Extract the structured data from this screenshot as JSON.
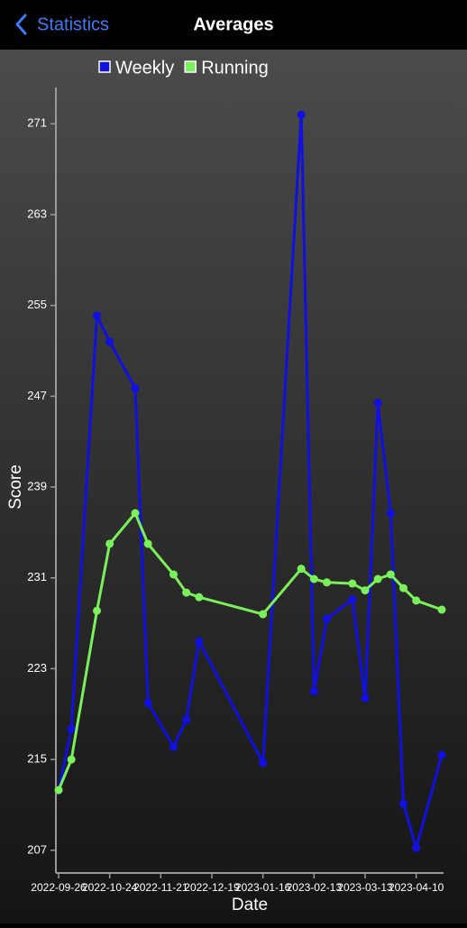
{
  "header": {
    "back": "Statistics",
    "title": "Averages"
  },
  "chart_data": {
    "type": "line",
    "x_label": "Date",
    "y_label": "Score",
    "x": [
      "2022-09-26",
      "2022-10-03",
      "2022-10-17",
      "2022-10-24",
      "2022-11-07",
      "2022-11-14",
      "2022-11-28",
      "2022-12-05",
      "2022-12-12",
      "2023-01-16",
      "2023-02-06",
      "2023-02-13",
      "2023-02-20",
      "2023-03-06",
      "2023-03-13",
      "2023-03-20",
      "2023-03-27",
      "2023-04-03",
      "2023-04-10",
      "2023-04-24"
    ],
    "series": [
      {
        "name": "Weekly",
        "color": "#1010e0",
        "values": [
          212.3,
          217.7,
          254.1,
          251.8,
          247.7,
          220.0,
          216.1,
          218.5,
          225.4,
          214.7,
          271.8,
          221.0,
          227.4,
          229.1,
          220.4,
          246.4,
          236.7,
          211.1,
          207.2,
          215.4
        ]
      },
      {
        "name": "Running",
        "color": "#7af05a",
        "values": [
          212.3,
          215.0,
          228.1,
          234.0,
          236.7,
          234.0,
          231.3,
          229.7,
          229.3,
          227.8,
          231.8,
          230.9,
          230.6,
          230.5,
          229.9,
          230.9,
          231.3,
          230.1,
          229.0,
          228.2
        ]
      }
    ],
    "xlim": [
      "2022-09-26",
      "2023-04-25"
    ],
    "xticks": [
      "2022-09-26",
      "2022-10-24",
      "2022-11-21",
      "2022-12-19",
      "2023-01-16",
      "2023-02-13",
      "2023-03-13",
      "2023-04-10"
    ],
    "ylim": [
      205,
      274.2
    ],
    "yticks": [
      207,
      215,
      223,
      231,
      239,
      247,
      255,
      263,
      271
    ]
  }
}
